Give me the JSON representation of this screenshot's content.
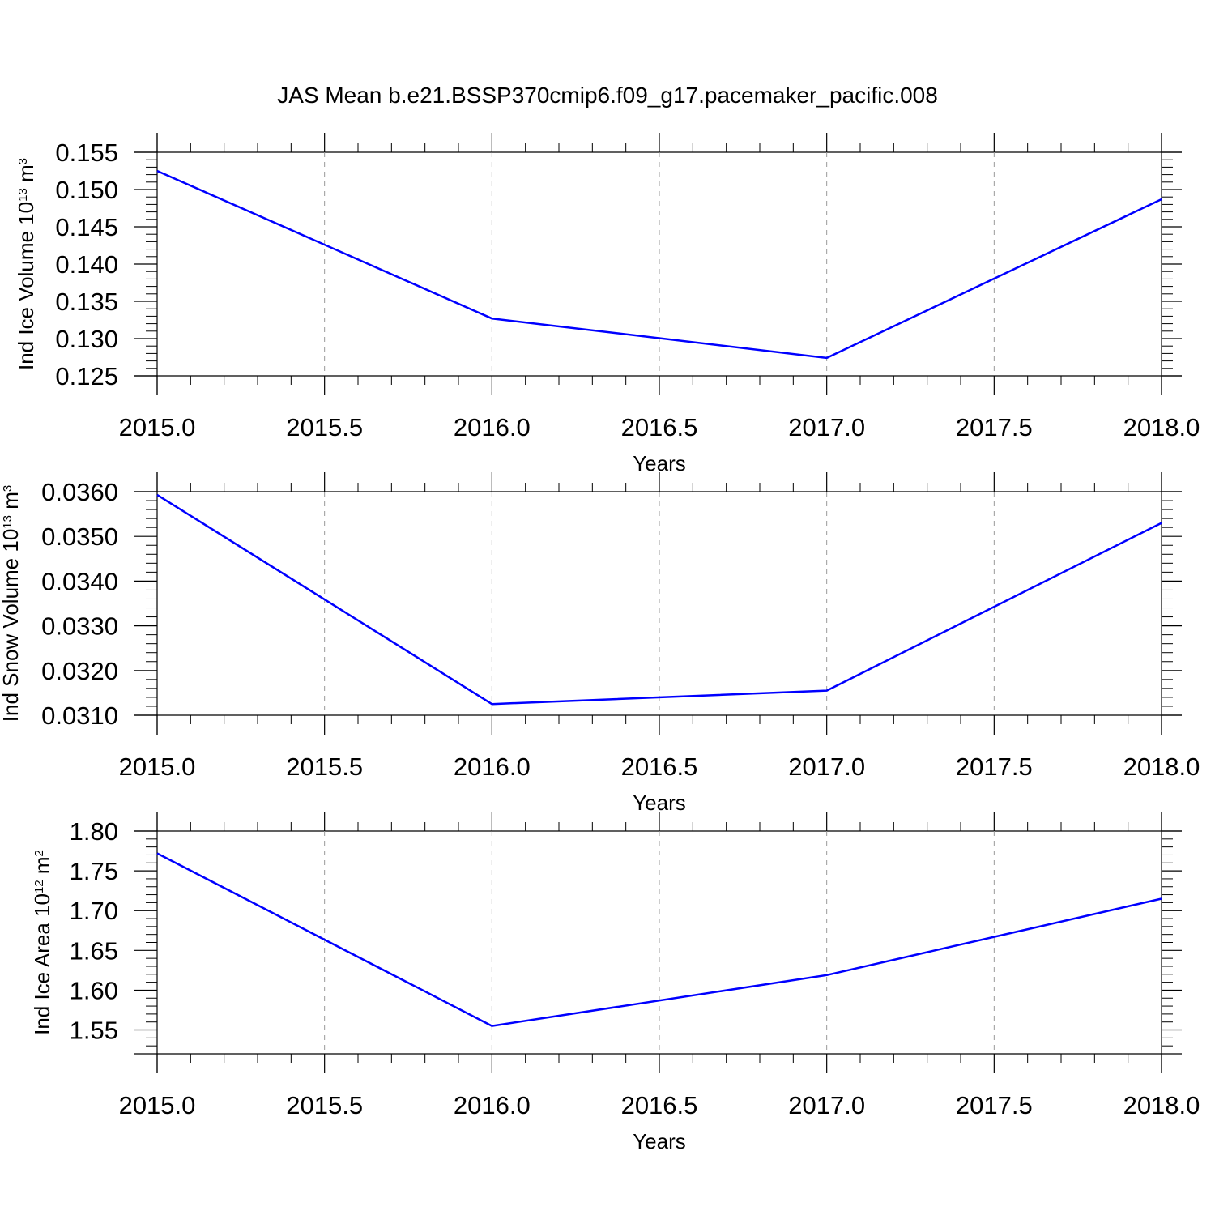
{
  "figure": {
    "title": "JAS Mean b.e21.BSSP370cmip6.f09_g17.pacemaker_pacific.008",
    "line_color": "#0000ff",
    "grid_color": "#999999"
  },
  "chart_data": [
    {
      "type": "line",
      "xlabel": "Years",
      "ylabel": {
        "prefix": "Ind Ice Volume 10",
        "exponent": "13",
        "unit": " m",
        "unit_exponent": "3"
      },
      "x": [
        2015.0,
        2016.0,
        2017.0,
        2018.0
      ],
      "y": [
        0.1525,
        0.1327,
        0.1274,
        0.1487
      ],
      "xlim": [
        2015.0,
        2018.0
      ],
      "ylim": [
        0.125,
        0.155
      ],
      "xticks": [
        2015.0,
        2015.5,
        2016.0,
        2016.5,
        2017.0,
        2017.5,
        2018.0
      ],
      "xtick_labels": [
        "2015.0",
        "2015.5",
        "2016.0",
        "2016.5",
        "2017.0",
        "2017.5",
        "2018.0"
      ],
      "yticks": [
        0.125,
        0.13,
        0.135,
        0.14,
        0.145,
        0.15,
        0.155
      ],
      "ytick_labels": [
        "0.125",
        "0.130",
        "0.135",
        "0.140",
        "0.145",
        "0.150",
        "0.155"
      ],
      "grid": "vertical dashed"
    },
    {
      "type": "line",
      "xlabel": "Years",
      "ylabel": {
        "prefix": "Ind Snow Volume 10",
        "exponent": "13",
        "unit": " m",
        "unit_exponent": "3"
      },
      "x": [
        2015.0,
        2016.0,
        2017.0,
        2018.0
      ],
      "y": [
        0.03593,
        0.03125,
        0.03155,
        0.0353
      ],
      "xlim": [
        2015.0,
        2018.0
      ],
      "ylim": [
        0.031,
        0.036
      ],
      "xticks": [
        2015.0,
        2015.5,
        2016.0,
        2016.5,
        2017.0,
        2017.5,
        2018.0
      ],
      "xtick_labels": [
        "2015.0",
        "2015.5",
        "2016.0",
        "2016.5",
        "2017.0",
        "2017.5",
        "2018.0"
      ],
      "yticks": [
        0.031,
        0.032,
        0.033,
        0.034,
        0.035,
        0.036
      ],
      "ytick_labels": [
        "0.0310",
        "0.0320",
        "0.0330",
        "0.0340",
        "0.0350",
        "0.0360"
      ],
      "grid": "vertical dashed"
    },
    {
      "type": "line",
      "xlabel": "Years",
      "ylabel": {
        "prefix": "Ind Ice Area 10",
        "exponent": "12",
        "unit": " m",
        "unit_exponent": "2"
      },
      "x": [
        2015.0,
        2016.0,
        2017.0,
        2018.0
      ],
      "y": [
        1.772,
        1.555,
        1.619,
        1.715
      ],
      "xlim": [
        2015.0,
        2018.0
      ],
      "ylim": [
        1.52,
        1.8
      ],
      "xticks": [
        2015.0,
        2015.5,
        2016.0,
        2016.5,
        2017.0,
        2017.5,
        2018.0
      ],
      "xtick_labels": [
        "2015.0",
        "2015.5",
        "2016.0",
        "2016.5",
        "2017.0",
        "2017.5",
        "2018.0"
      ],
      "yticks": [
        1.55,
        1.6,
        1.65,
        1.7,
        1.75,
        1.8
      ],
      "ytick_labels": [
        "1.55",
        "1.60",
        "1.65",
        "1.70",
        "1.75",
        "1.80"
      ],
      "grid": "vertical dashed"
    }
  ]
}
